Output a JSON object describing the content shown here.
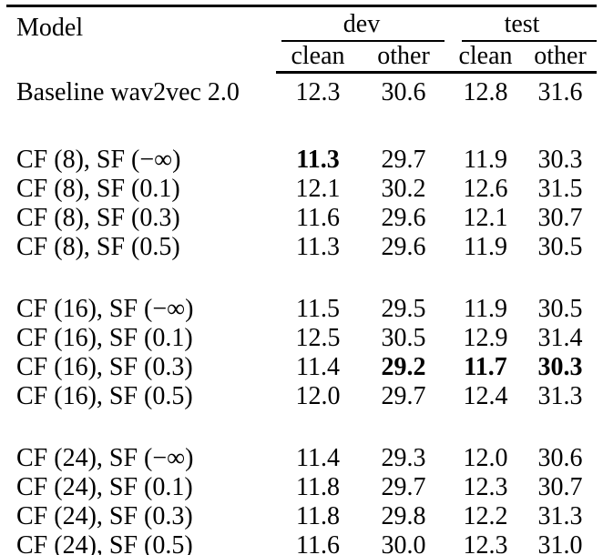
{
  "table": {
    "header": {
      "model": "Model",
      "groups": [
        {
          "label": "dev",
          "sub": [
            "clean",
            "other"
          ]
        },
        {
          "label": "test",
          "sub": [
            "clean",
            "other"
          ]
        }
      ]
    },
    "groups": [
      {
        "rows": [
          {
            "model": "Baseline wav2vec 2.0",
            "values": [
              "12.3",
              "30.6",
              "12.8",
              "31.6"
            ],
            "bold": []
          }
        ]
      },
      {
        "rows": [
          {
            "model": "CF (8), SF (−∞)",
            "values": [
              "11.3",
              "29.7",
              "11.9",
              "30.3"
            ],
            "bold": [
              0
            ]
          },
          {
            "model": "CF (8), SF (0.1)",
            "values": [
              "12.1",
              "30.2",
              "12.6",
              "31.5"
            ],
            "bold": []
          },
          {
            "model": "CF (8), SF (0.3)",
            "values": [
              "11.6",
              "29.6",
              "12.1",
              "30.7"
            ],
            "bold": []
          },
          {
            "model": "CF (8), SF (0.5)",
            "values": [
              "11.3",
              "29.6",
              "11.9",
              "30.5"
            ],
            "bold": []
          }
        ]
      },
      {
        "rows": [
          {
            "model": "CF (16), SF (−∞)",
            "values": [
              "11.5",
              "29.5",
              "11.9",
              "30.5"
            ],
            "bold": []
          },
          {
            "model": "CF (16), SF (0.1)",
            "values": [
              "12.5",
              "30.5",
              "12.9",
              "31.4"
            ],
            "bold": []
          },
          {
            "model": "CF (16), SF (0.3)",
            "values": [
              "11.4",
              "29.2",
              "11.7",
              "30.3"
            ],
            "bold": [
              1,
              2,
              3
            ]
          },
          {
            "model": "CF (16), SF (0.5)",
            "values": [
              "12.0",
              "29.7",
              "12.4",
              "31.3"
            ],
            "bold": []
          }
        ]
      },
      {
        "rows": [
          {
            "model": "CF (24), SF (−∞)",
            "values": [
              "11.4",
              "29.3",
              "12.0",
              "30.6"
            ],
            "bold": []
          },
          {
            "model": "CF (24), SF (0.1)",
            "values": [
              "11.8",
              "29.7",
              "12.3",
              "30.7"
            ],
            "bold": []
          },
          {
            "model": "CF (24), SF (0.3)",
            "values": [
              "11.8",
              "29.8",
              "12.2",
              "31.3"
            ],
            "bold": []
          },
          {
            "model": "CF (24), SF (0.5)",
            "values": [
              "11.6",
              "30.0",
              "12.3",
              "31.0"
            ],
            "bold": []
          }
        ]
      }
    ],
    "rules": {
      "color": "#000000"
    }
  }
}
